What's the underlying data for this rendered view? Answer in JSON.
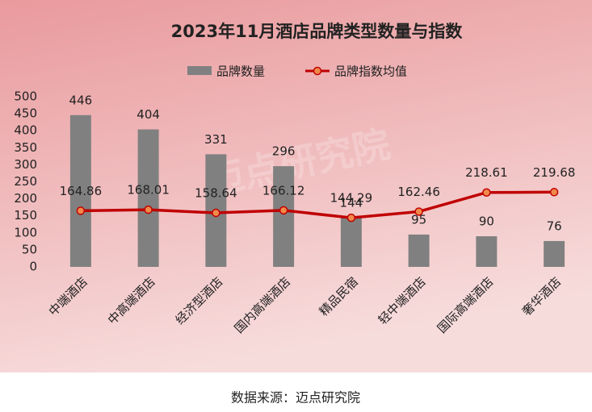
{
  "chart_data": {
    "type": "bar_line",
    "title": "2023年11月酒店品牌类型数量与指数",
    "categories": [
      "中端酒店",
      "中高端酒店",
      "经济型酒店",
      "国内高端酒店",
      "精品民宿",
      "轻中端酒店",
      "国际高端酒店",
      "奢华酒店"
    ],
    "series": [
      {
        "name": "品牌数量",
        "type": "bar",
        "color": "#808080",
        "values": [
          446,
          404,
          331,
          296,
          144,
          95,
          90,
          76
        ]
      },
      {
        "name": "品牌指数均值",
        "type": "line",
        "color": "#c00000",
        "marker_color": "#f08a4b",
        "values": [
          164.86,
          168.01,
          158.64,
          166.12,
          144.29,
          162.46,
          218.61,
          219.68
        ]
      }
    ],
    "ylim": [
      0,
      500
    ],
    "yticks": [
      0,
      50,
      100,
      150,
      200,
      250,
      300,
      350,
      400,
      450,
      500
    ],
    "grid": false,
    "legend": "top",
    "watermark": "迈点研究院",
    "source": "数据来源：迈点研究院"
  }
}
